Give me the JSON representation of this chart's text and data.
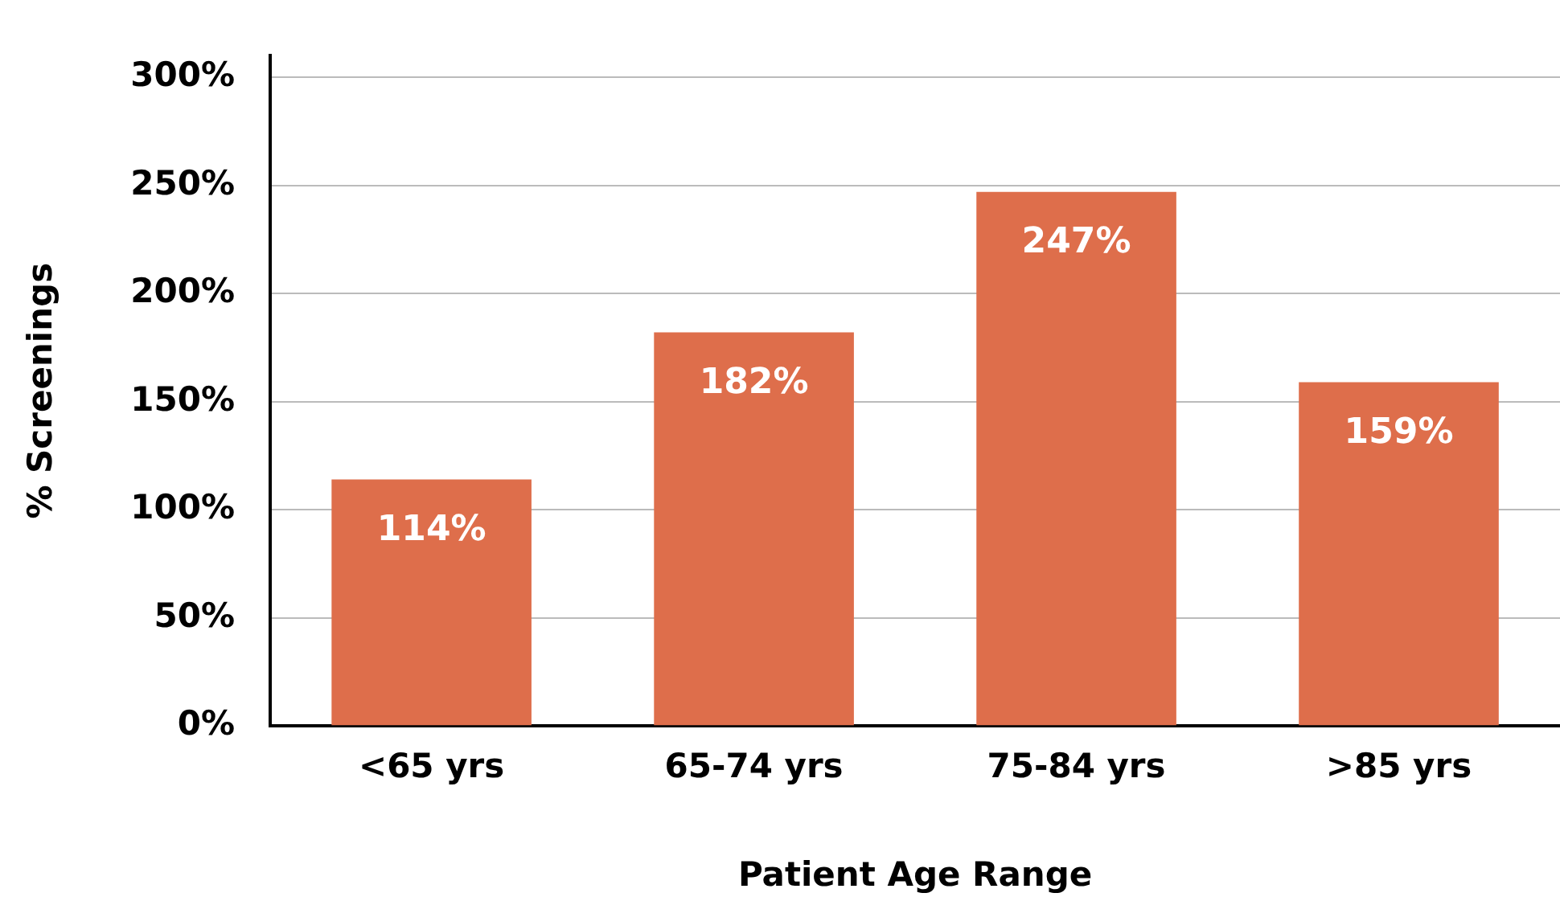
{
  "chart_data": {
    "type": "bar",
    "xlabel": "Patient Age Range",
    "ylabel": "% Screenings",
    "categories": [
      "<65 yrs",
      "65-74 yrs",
      "75-84 yrs",
      ">85 yrs"
    ],
    "values": [
      114,
      182,
      247,
      159
    ],
    "color": "#de6e4b",
    "value_labels": [
      "114%",
      "182%",
      "247%",
      "159%"
    ],
    "ylim": [
      0,
      310
    ],
    "yticks": [
      {
        "value": 0,
        "label": "0%"
      },
      {
        "value": 50,
        "label": "50%"
      },
      {
        "value": 100,
        "label": "100%"
      },
      {
        "value": 150,
        "label": "150%"
      },
      {
        "value": 200,
        "label": "200%"
      },
      {
        "value": 250,
        "label": "250%"
      },
      {
        "value": 300,
        "label": "300%"
      }
    ],
    "grid": "y",
    "legend": false
  }
}
